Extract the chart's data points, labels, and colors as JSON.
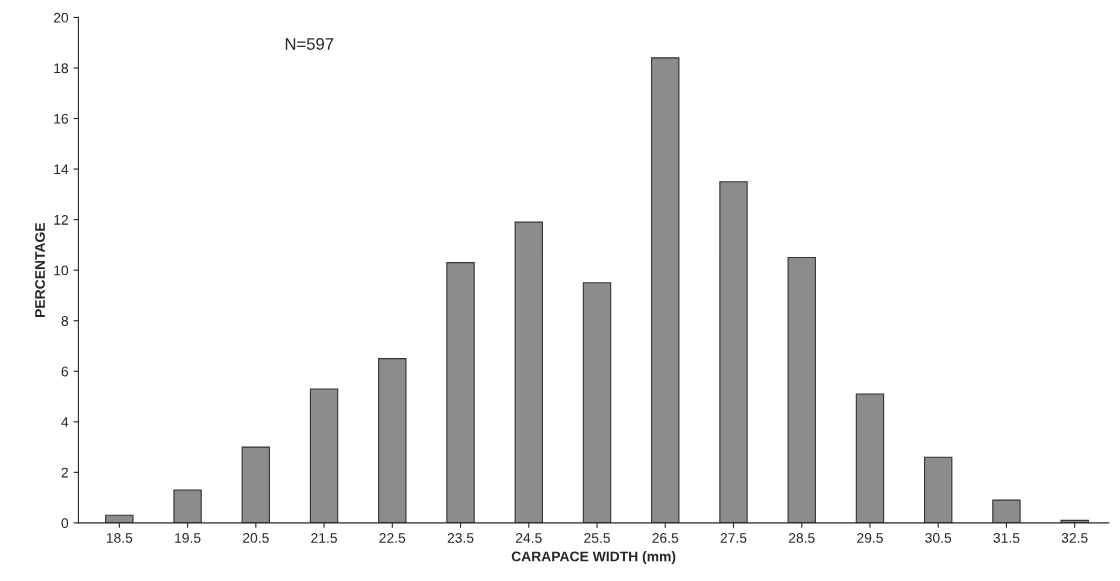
{
  "chart_data": {
    "type": "bar",
    "xlabel": "CARAPACE WIDTH (mm)",
    "ylabel": "PERCENTAGE",
    "categories": [
      "18.5",
      "19.5",
      "20.5",
      "21.5",
      "22.5",
      "23.5",
      "24.5",
      "25.5",
      "26.5",
      "27.5",
      "28.5",
      "29.5",
      "30.5",
      "31.5",
      "32.5"
    ],
    "values": [
      0.3,
      1.3,
      3.0,
      5.3,
      6.5,
      10.3,
      11.9,
      9.5,
      18.4,
      13.5,
      10.5,
      5.1,
      2.6,
      0.9,
      0.1
    ],
    "color": "#8c8c8c",
    "ylim": [
      0,
      20
    ],
    "yticks": [
      0,
      2,
      4,
      6,
      8,
      10,
      12,
      14,
      16,
      18,
      20
    ],
    "grid": false,
    "annotations": [
      {
        "text": "N=597"
      }
    ]
  }
}
